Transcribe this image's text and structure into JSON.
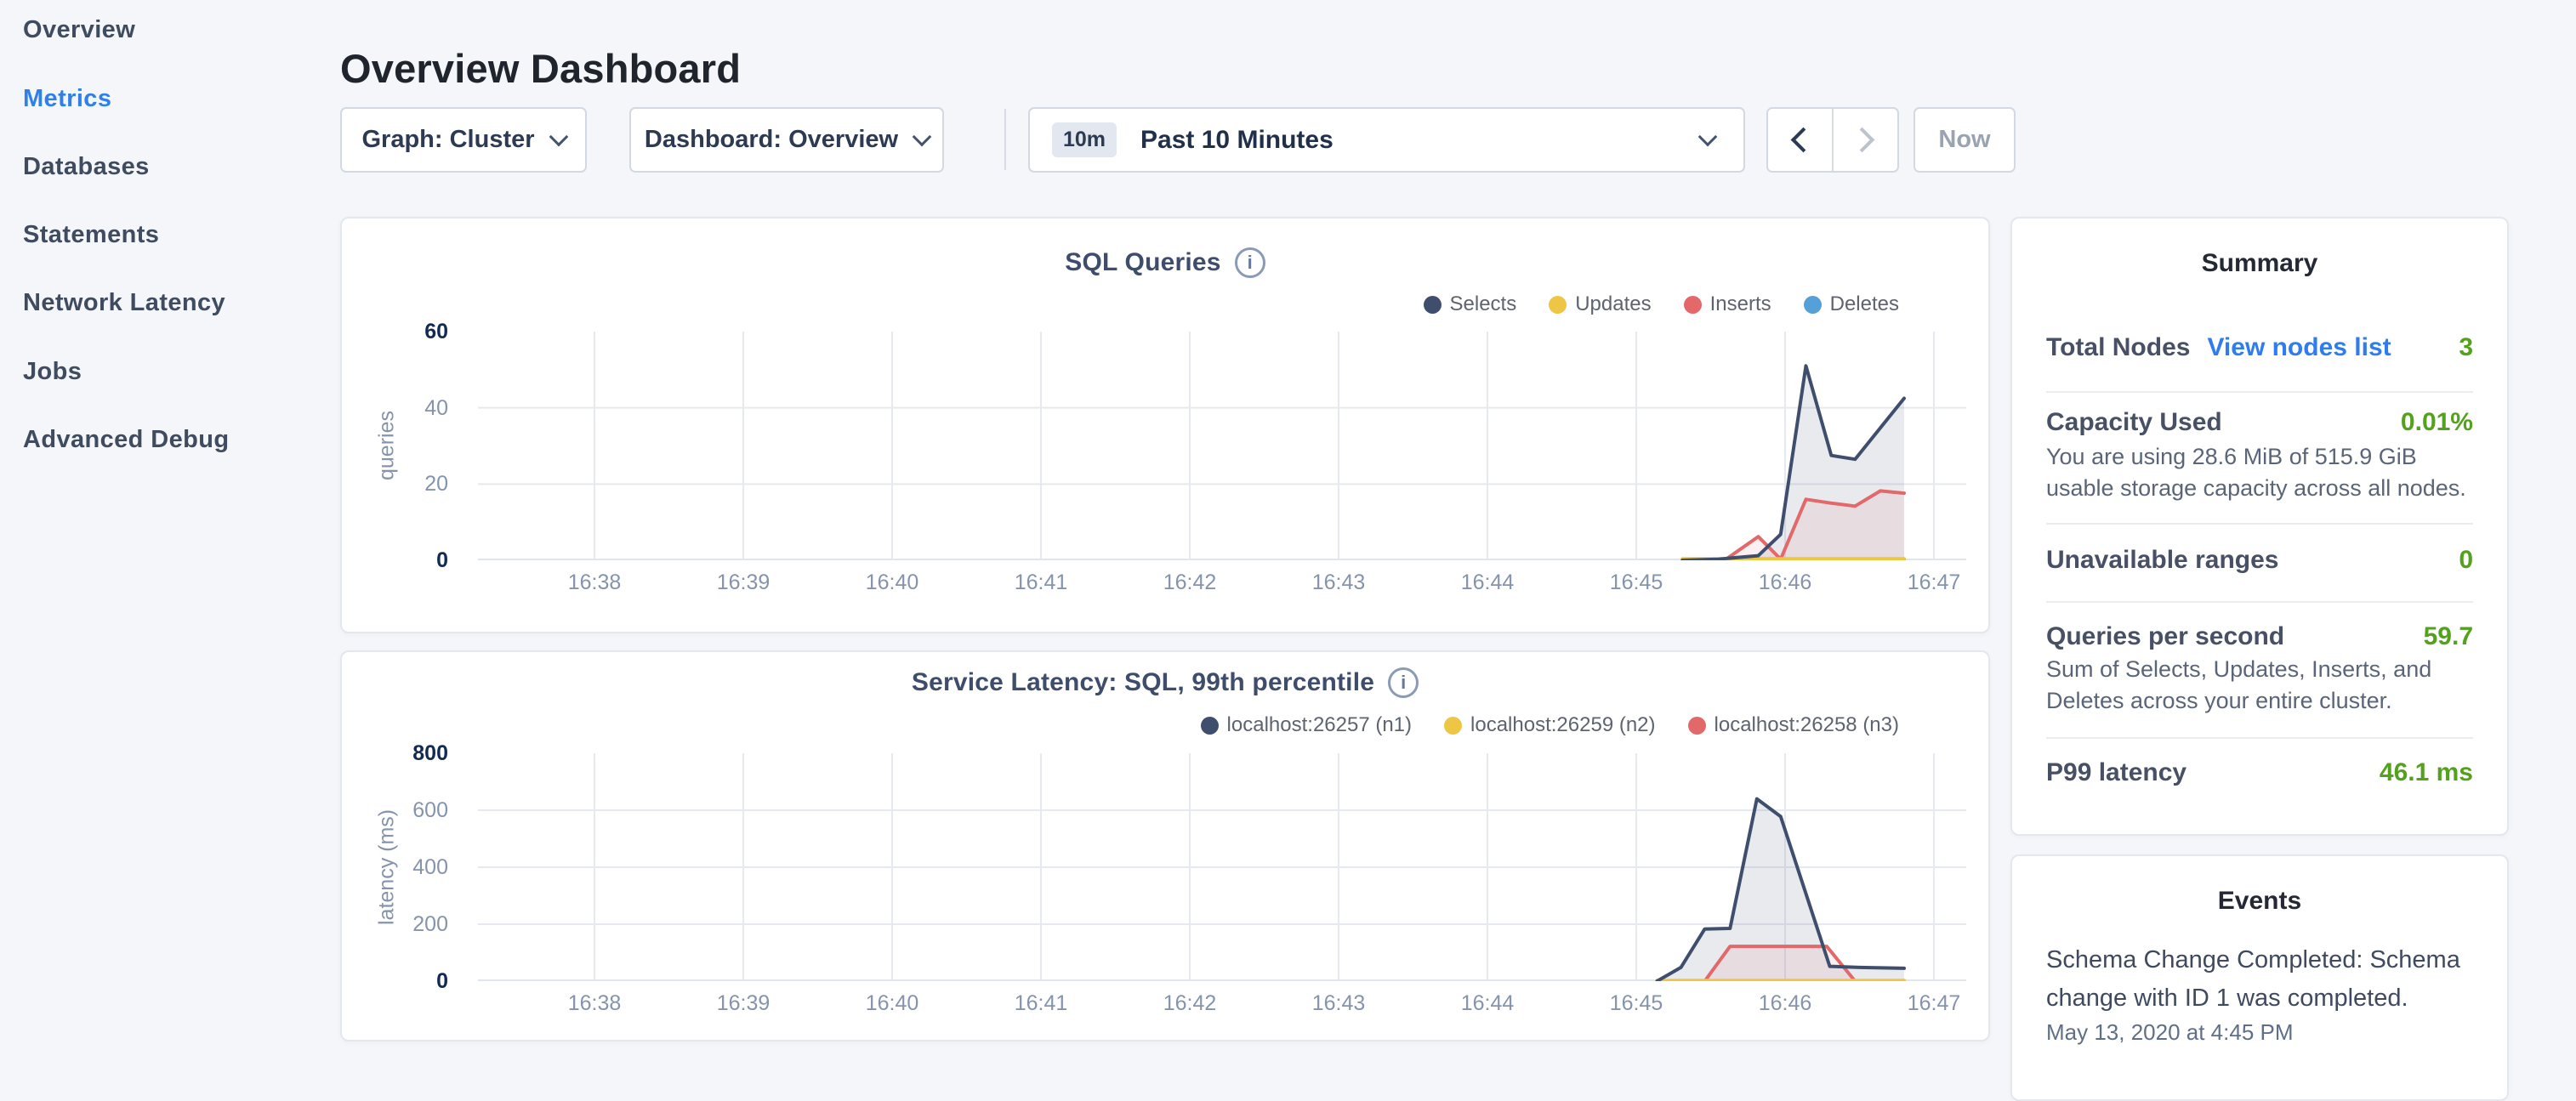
{
  "sidebar": {
    "items": [
      {
        "label": "Overview",
        "active": false
      },
      {
        "label": "Metrics",
        "active": true
      },
      {
        "label": "Databases",
        "active": false
      },
      {
        "label": "Statements",
        "active": false
      },
      {
        "label": "Network Latency",
        "active": false
      },
      {
        "label": "Jobs",
        "active": false
      },
      {
        "label": "Advanced Debug",
        "active": false
      }
    ]
  },
  "header": {
    "title": "Overview Dashboard"
  },
  "toolbar": {
    "graph_label": "Graph: Cluster",
    "dashboard_label": "Dashboard: Overview",
    "time_shortcut": "10m",
    "time_label": "Past 10 Minutes",
    "now_label": "Now"
  },
  "icons": {
    "info": "i"
  },
  "colors": {
    "accent_blue": "#2f80e8",
    "link_blue": "#2e7cf0",
    "value_green": "#54a11e",
    "series_navy": "#3e4e6c",
    "series_yellow": "#eec643",
    "series_red": "#e2686a",
    "series_blue": "#56a0d9",
    "grid": "#e6e9f0"
  },
  "chart_data": [
    {
      "type": "line",
      "title": "SQL Queries",
      "ylabel": "queries",
      "ymax": 60,
      "yticks": [
        0,
        20,
        40,
        60
      ],
      "x_tick_labels": [
        "16:38",
        "16:39",
        "16:40",
        "16:41",
        "16:42",
        "16:43",
        "16:44",
        "16:45",
        "16:46",
        "16:47"
      ],
      "grid": true,
      "legend_position": "top-right",
      "series": [
        {
          "name": "Selects",
          "color": "#3e4e6c",
          "fill": "rgba(93,108,138,0.14)",
          "points": [
            [
              7.31,
              0
            ],
            [
              7.55,
              0.3
            ],
            [
              7.82,
              1.2
            ],
            [
              7.97,
              6.8
            ],
            [
              8.14,
              51
            ],
            [
              8.31,
              27.5
            ],
            [
              8.47,
              26.5
            ],
            [
              8.8,
              42.5
            ]
          ]
        },
        {
          "name": "Updates",
          "color": "#eec643",
          "fill": "none",
          "points": [
            [
              7.31,
              0.4
            ],
            [
              8.8,
              0.4
            ]
          ]
        },
        {
          "name": "Inserts",
          "color": "#e2686a",
          "fill": "rgba(226,104,106,0.10)",
          "points": [
            [
              7.31,
              0
            ],
            [
              7.6,
              0.2
            ],
            [
              7.82,
              6.2
            ],
            [
              7.97,
              0.3
            ],
            [
              8.14,
              16
            ],
            [
              8.31,
              15
            ],
            [
              8.47,
              14.2
            ],
            [
              8.64,
              18.2
            ],
            [
              8.8,
              17.6
            ]
          ]
        },
        {
          "name": "Deletes",
          "color": "#56a0d9",
          "fill": "none",
          "points": [
            [
              7.31,
              0.1
            ],
            [
              8.8,
              0.1
            ]
          ]
        }
      ]
    },
    {
      "type": "line",
      "title": "Service Latency: SQL, 99th percentile",
      "ylabel": "latency (ms)",
      "ymax": 800,
      "yticks": [
        0,
        200,
        400,
        600,
        800
      ],
      "x_tick_labels": [
        "16:38",
        "16:39",
        "16:40",
        "16:41",
        "16:42",
        "16:43",
        "16:44",
        "16:45",
        "16:46",
        "16:47"
      ],
      "grid": true,
      "legend_position": "top-right",
      "series": [
        {
          "name": "localhost:26257 (n1)",
          "color": "#3e4e6c",
          "fill": "rgba(93,108,138,0.14)",
          "points": [
            [
              7.14,
              0
            ],
            [
              7.3,
              48
            ],
            [
              7.46,
              183
            ],
            [
              7.63,
              185
            ],
            [
              7.81,
              640
            ],
            [
              7.97,
              578
            ],
            [
              8.3,
              52
            ],
            [
              8.5,
              48
            ],
            [
              8.8,
              45
            ]
          ]
        },
        {
          "name": "localhost:26259 (n2)",
          "color": "#eec643",
          "fill": "none",
          "points": [
            [
              7.14,
              2
            ],
            [
              8.8,
              2
            ]
          ]
        },
        {
          "name": "localhost:26258 (n3)",
          "color": "#e2686a",
          "fill": "rgba(226,104,106,0.10)",
          "points": [
            [
              7.14,
              0
            ],
            [
              7.46,
              0
            ],
            [
              7.63,
              122
            ],
            [
              8.28,
              122
            ],
            [
              8.47,
              0
            ],
            [
              8.8,
              0
            ]
          ]
        }
      ]
    }
  ],
  "summary": {
    "title": "Summary",
    "rows": [
      {
        "label": "Total Nodes",
        "link": "View nodes list",
        "value": "3"
      },
      {
        "label": "Capacity Used",
        "value": "0.01%",
        "description": "You are using 28.6 MiB of 515.9 GiB usable storage capacity across all nodes."
      },
      {
        "label": "Unavailable ranges",
        "value": "0"
      },
      {
        "label": "Queries per second",
        "value": "59.7",
        "description": "Sum of Selects, Updates, Inserts, and Deletes across your entire cluster."
      },
      {
        "label": "P99 latency",
        "value": "46.1 ms"
      }
    ]
  },
  "events": {
    "title": "Events",
    "items": [
      {
        "message": "Schema Change Completed: Schema change with ID 1 was completed.",
        "timestamp": "May 13, 2020 at 4:45 PM"
      }
    ]
  }
}
